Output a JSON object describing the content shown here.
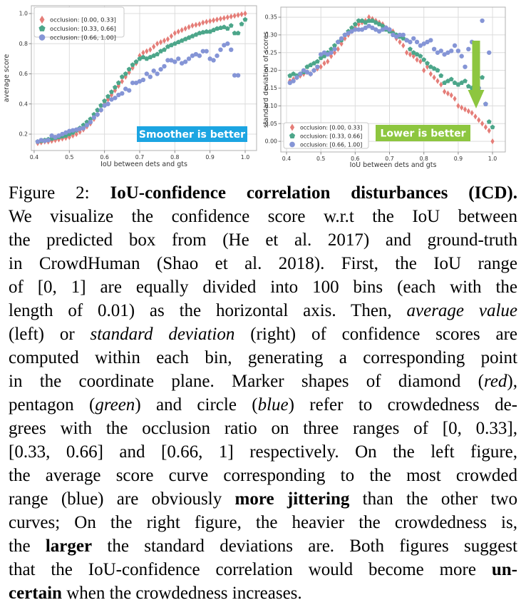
{
  "figure": {
    "caption_lines": [
      [
        {
          "t": "Figure 2: "
        },
        {
          "t": "IoU-confidence correlation disturbances (ICD).",
          "b": true
        }
      ],
      [
        {
          "t": "We visualize the confidence score w.r.t the IoU between"
        }
      ],
      [
        {
          "t": "the predicted box from (He et al. 2017) and ground-truth"
        }
      ],
      [
        {
          "t": "in CrowdHuman (Shao et al. 2018). First, the IoU range"
        }
      ],
      [
        {
          "t": "of [0, 1] are equally divided into 100 bins (each with the"
        }
      ],
      [
        {
          "t": "length of 0.01) as the horizontal axis. Then, "
        },
        {
          "t": "average value",
          "i": true
        }
      ],
      [
        {
          "t": "(left) or "
        },
        {
          "t": "standard deviation",
          "i": true
        },
        {
          "t": " (right) of confidence scores are"
        }
      ],
      [
        {
          "t": "computed within each bin, generating a corresponding point"
        }
      ],
      [
        {
          "t": "in the coordinate plane. Marker shapes of diamond ("
        },
        {
          "t": "red",
          "i": true
        },
        {
          "t": "),"
        }
      ],
      [
        {
          "t": "pentagon ("
        },
        {
          "t": "green",
          "i": true
        },
        {
          "t": ") and circle ("
        },
        {
          "t": "blue",
          "i": true
        },
        {
          "t": ") refer to crowdedness de-"
        }
      ],
      [
        {
          "t": "grees with the occlusion ratio on three ranges of [0, 0.33],"
        }
      ],
      [
        {
          "t": "[0.33, 0.66] and [0.66, 1] respectively. On the left figure,"
        }
      ],
      [
        {
          "t": "the average score curve corresponding to the most crowded"
        }
      ],
      [
        {
          "t": "range (blue) are obviously "
        },
        {
          "t": "more jittering",
          "b": true
        },
        {
          "t": " than the other two"
        }
      ],
      [
        {
          "t": "curves; On the right figure, the heavier the crowdedness is,"
        }
      ],
      [
        {
          "t": "the "
        },
        {
          "t": "larger",
          "b": true
        },
        {
          "t": " the standard deviations are. Both figures suggest"
        }
      ],
      [
        {
          "t": "that the IoU-confidence correlation would become more "
        },
        {
          "t": "un-",
          "b": true
        }
      ],
      [
        {
          "t": "certain",
          "b": true
        },
        {
          "t": " when the crowdedness increases."
        }
      ]
    ]
  },
  "chart_data": [
    {
      "type": "scatter",
      "xlabel": "IoU between dets and gts",
      "ylabel": "average score",
      "xlim": [
        0.392,
        1.0325
      ],
      "ylim": [
        0.091,
        1.052
      ],
      "xticks": [
        0.4,
        0.5,
        0.6,
        0.7,
        0.8,
        0.9,
        1.0
      ],
      "xtick_labels": [
        "0.4",
        "0.5",
        "0.6",
        "0.7",
        "0.8",
        "0.9",
        "1.0"
      ],
      "yticks": [
        0.2,
        0.4,
        0.6,
        0.8,
        1.0
      ],
      "ytick_labels": [
        "0.2",
        "0.4",
        "0.6",
        "0.8",
        "1.0"
      ],
      "grid": true,
      "legend_position": "top-left",
      "annotation": {
        "text": "Smoother is better",
        "bg": "#1ca5e2",
        "fg": "#ffffff"
      },
      "x": [
        0.41,
        0.42,
        0.43,
        0.44,
        0.45,
        0.46,
        0.47,
        0.48,
        0.49,
        0.5,
        0.51,
        0.52,
        0.53,
        0.54,
        0.55,
        0.56,
        0.57,
        0.58,
        0.59,
        0.6,
        0.61,
        0.62,
        0.63,
        0.64,
        0.65,
        0.66,
        0.67,
        0.68,
        0.69,
        0.7,
        0.71,
        0.72,
        0.73,
        0.74,
        0.75,
        0.76,
        0.77,
        0.78,
        0.79,
        0.8,
        0.81,
        0.82,
        0.83,
        0.84,
        0.85,
        0.86,
        0.87,
        0.88,
        0.89,
        0.9,
        0.91,
        0.92,
        0.93,
        0.94,
        0.95,
        0.96,
        0.97,
        0.98,
        0.99,
        1.0
      ],
      "series": [
        {
          "name": "occlusion: [0.00, 0.33]",
          "marker": "diamond",
          "color": "#e57d78",
          "y": [
            0.14,
            0.145,
            0.15,
            0.15,
            0.155,
            0.16,
            0.165,
            0.17,
            0.175,
            0.18,
            0.19,
            0.2,
            0.215,
            0.23,
            0.25,
            0.27,
            0.3,
            0.33,
            0.36,
            0.4,
            0.43,
            0.46,
            0.49,
            0.52,
            0.55,
            0.58,
            0.61,
            0.64,
            0.67,
            0.72,
            0.74,
            0.75,
            0.76,
            0.78,
            0.8,
            0.81,
            0.82,
            0.83,
            0.85,
            0.87,
            0.88,
            0.89,
            0.9,
            0.91,
            0.92,
            0.925,
            0.93,
            0.94,
            0.945,
            0.95,
            0.955,
            0.96,
            0.965,
            0.97,
            0.975,
            0.98,
            0.985,
            0.99,
            0.995,
            1.0
          ]
        },
        {
          "name": "occlusion: [0.33, 0.66]",
          "marker": "pentagon",
          "color": "#4ca68a",
          "y": [
            0.15,
            0.155,
            0.16,
            0.165,
            0.17,
            0.175,
            0.18,
            0.185,
            0.19,
            0.2,
            0.21,
            0.225,
            0.24,
            0.26,
            0.28,
            0.3,
            0.33,
            0.36,
            0.39,
            0.42,
            0.45,
            0.48,
            0.51,
            0.54,
            0.58,
            0.6,
            0.63,
            0.66,
            0.68,
            0.7,
            0.71,
            0.7,
            0.71,
            0.72,
            0.73,
            0.75,
            0.76,
            0.78,
            0.79,
            0.8,
            0.81,
            0.82,
            0.83,
            0.84,
            0.85,
            0.86,
            0.87,
            0.875,
            0.88,
            0.88,
            0.89,
            0.9,
            0.905,
            0.91,
            0.9,
            0.92,
            0.87,
            0.87,
            0.93,
            0.96
          ]
        },
        {
          "name": "occlusion: [0.66, 1.00]",
          "marker": "circle",
          "color": "#8595d6",
          "y": [
            0.15,
            0.16,
            0.155,
            0.16,
            0.19,
            0.18,
            0.19,
            0.2,
            0.21,
            0.22,
            0.225,
            0.23,
            0.235,
            0.24,
            0.26,
            0.28,
            0.31,
            0.33,
            0.36,
            0.39,
            0.4,
            0.43,
            0.44,
            0.46,
            0.47,
            0.5,
            0.49,
            0.54,
            0.54,
            0.55,
            0.56,
            0.6,
            0.58,
            0.62,
            0.6,
            0.63,
            0.65,
            0.69,
            0.69,
            0.68,
            0.7,
            0.67,
            0.68,
            0.7,
            0.72,
            0.73,
            0.72,
            0.75,
            0.75,
            0.7,
            0.69,
            0.72,
            0.76,
            0.79,
            0.8,
            0.76,
            0.59,
            0.59,
            null,
            null
          ]
        }
      ]
    },
    {
      "type": "scatter",
      "xlabel": "IoU between dets and gts",
      "ylabel": "standard deviation of scores",
      "xlim": [
        0.3834,
        1.0373
      ],
      "ylim": [
        -0.03,
        0.3783
      ],
      "xticks": [
        0.4,
        0.5,
        0.6,
        0.7,
        0.8,
        0.9,
        1.0
      ],
      "xtick_labels": [
        "0.4",
        "0.5",
        "0.6",
        "0.7",
        "0.8",
        "0.9",
        "1.0"
      ],
      "yticks": [
        0.0,
        0.05,
        0.1,
        0.15,
        0.2,
        0.25,
        0.3,
        0.35
      ],
      "ytick_labels": [
        "0.00",
        "0.05",
        "0.10",
        "0.15",
        "0.20",
        "0.25",
        "0.30",
        "0.35"
      ],
      "grid": true,
      "legend_position": "bottom-left",
      "annotation": {
        "text": "Lower is better",
        "bg": "#8dc63f",
        "fg": "#ffffff"
      },
      "arrow": {
        "direction": "down",
        "color": "#8dc63f"
      },
      "x": [
        0.41,
        0.42,
        0.43,
        0.44,
        0.45,
        0.46,
        0.47,
        0.48,
        0.49,
        0.5,
        0.51,
        0.52,
        0.53,
        0.54,
        0.55,
        0.56,
        0.57,
        0.58,
        0.59,
        0.6,
        0.61,
        0.62,
        0.63,
        0.64,
        0.65,
        0.66,
        0.67,
        0.68,
        0.69,
        0.7,
        0.71,
        0.72,
        0.73,
        0.74,
        0.75,
        0.76,
        0.77,
        0.78,
        0.79,
        0.8,
        0.81,
        0.82,
        0.83,
        0.84,
        0.85,
        0.86,
        0.87,
        0.88,
        0.89,
        0.9,
        0.91,
        0.92,
        0.93,
        0.94,
        0.95,
        0.96,
        0.97,
        0.98,
        0.99,
        1.0
      ],
      "series": [
        {
          "name": "occlusion: [0.00, 0.33]",
          "marker": "diamond",
          "color": "#e57d78",
          "y": [
            0.17,
            0.175,
            0.18,
            0.185,
            0.19,
            0.195,
            0.19,
            0.2,
            0.205,
            0.21,
            0.22,
            0.225,
            0.24,
            0.25,
            0.26,
            0.275,
            0.29,
            0.3,
            0.31,
            0.32,
            0.33,
            0.335,
            0.34,
            0.35,
            0.345,
            0.34,
            0.335,
            0.33,
            0.32,
            0.315,
            0.31,
            0.29,
            0.28,
            0.27,
            0.25,
            0.245,
            0.24,
            0.23,
            0.225,
            0.2,
            0.21,
            0.19,
            0.18,
            0.17,
            0.16,
            0.14,
            0.135,
            0.13,
            0.12,
            0.1,
            0.095,
            0.09,
            0.085,
            0.08,
            0.07,
            0.06,
            0.05,
            0.04,
            0.03,
            0.0
          ]
        },
        {
          "name": "occlusion: [0.33, 0.66]",
          "marker": "pentagon",
          "color": "#4ca68a",
          "y": [
            0.185,
            0.19,
            0.185,
            0.19,
            0.195,
            0.21,
            0.215,
            0.22,
            0.225,
            0.235,
            0.24,
            0.25,
            0.26,
            0.27,
            0.28,
            0.285,
            0.3,
            0.31,
            0.32,
            0.33,
            0.34,
            0.34,
            0.335,
            0.34,
            0.34,
            0.335,
            0.33,
            0.325,
            0.315,
            0.31,
            0.305,
            0.3,
            0.295,
            0.29,
            0.285,
            0.26,
            0.25,
            0.245,
            0.24,
            0.23,
            0.22,
            0.21,
            0.205,
            0.2,
            0.185,
            0.165,
            0.17,
            0.175,
            0.165,
            0.16,
            0.165,
            0.17,
            0.155,
            0.15,
            0.16,
            0.13,
            0.18,
            0.105,
            0.055,
            0.04
          ]
        },
        {
          "name": "occlusion: [0.66, 1.00]",
          "marker": "circle",
          "color": "#8595d6",
          "y": [
            0.165,
            0.17,
            0.18,
            0.19,
            0.2,
            0.195,
            0.19,
            0.2,
            0.21,
            0.245,
            0.25,
            0.245,
            0.25,
            0.26,
            0.28,
            0.29,
            0.3,
            0.305,
            0.31,
            0.315,
            0.315,
            0.315,
            0.32,
            0.325,
            0.32,
            0.315,
            0.31,
            0.315,
            0.32,
            0.315,
            0.3,
            0.295,
            0.3,
            0.3,
            0.285,
            0.28,
            0.29,
            0.28,
            0.27,
            0.275,
            0.28,
            0.285,
            0.26,
            0.25,
            0.255,
            0.245,
            0.25,
            0.255,
            0.27,
            0.255,
            0.24,
            0.21,
            0.26,
            0.28,
            0.21,
            0.15,
            0.34,
            0.105,
            0.25,
            null
          ]
        }
      ]
    }
  ]
}
